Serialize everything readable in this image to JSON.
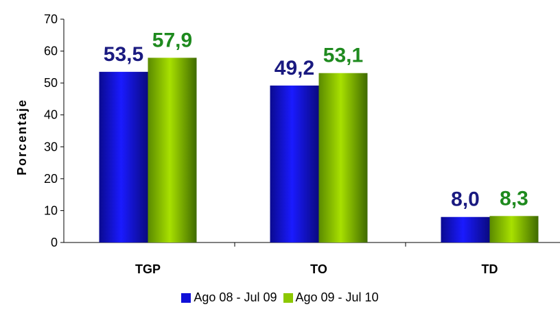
{
  "chart_data": {
    "type": "bar",
    "categories": [
      "TGP",
      "TO",
      "TD"
    ],
    "series": [
      {
        "name": "Ago 08 - Jul 09",
        "values": [
          53.5,
          49.2,
          8.0
        ],
        "labels": [
          "53,5",
          "49,2",
          "8,0"
        ],
        "color": "#1010d8",
        "label_color": "#1a1a80"
      },
      {
        "name": "Ago 09 - Jul 10",
        "values": [
          57.9,
          53.1,
          8.3
        ],
        "labels": [
          "57,9",
          "53,1",
          "8,3"
        ],
        "color": "#8cc800",
        "label_color": "#1e8a1e"
      }
    ],
    "ylabel": "Porcentaje",
    "ylim": [
      0,
      70
    ],
    "yticks": [
      "0",
      "10",
      "20",
      "30",
      "40",
      "50",
      "60",
      "70"
    ],
    "grid": false,
    "legend_position": "bottom"
  }
}
